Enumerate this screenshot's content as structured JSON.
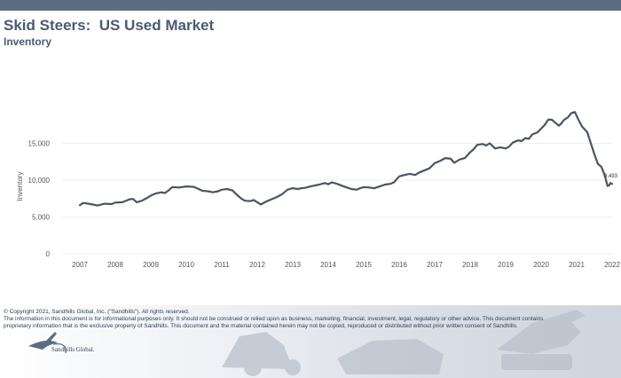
{
  "header": {
    "title": "Skid Steers:  US Used Market",
    "subtitle": "Inventory"
  },
  "footer": {
    "copyright": "© Copyright 2021, Sandhills Global, Inc. (\"Sandhills\"). All rights reserved.",
    "disclaimer": "The information in this document is for informational purposes only.  It should not be construed or relied upon as business, marketing, financial, investment, legal, regulatory or other advice. This document contains proprietary information that is the exclusive property of Sandhills. This document and the material contained herein may not be copied, reproduced or distributed without prior written consent of Sandhills.",
    "logo_text": "Sandhills Global."
  },
  "colors": {
    "header_band": "#5c6d80",
    "title": "#4a5b70",
    "line": "#4b5563",
    "grid": "#e6e9ee",
    "axis_text": "#555555"
  },
  "chart_data": {
    "type": "line",
    "title": "",
    "xlabel": "",
    "ylabel": "Inventory",
    "xlim": [
      2006.5,
      2022
    ],
    "ylim": [
      0,
      20000
    ],
    "y_ticks": [
      0,
      5000,
      10000,
      15000
    ],
    "y_tick_labels": [
      "0",
      "5,000",
      "10,000",
      "15,000"
    ],
    "x_ticks": [
      2007,
      2008,
      2009,
      2010,
      2011,
      2012,
      2013,
      2014,
      2015,
      2016,
      2017,
      2018,
      2019,
      2020,
      2021,
      2022
    ],
    "x_tick_labels": [
      "2007",
      "2008",
      "2009",
      "2010",
      "2011",
      "2012",
      "2013",
      "2014",
      "2015",
      "2016",
      "2017",
      "2018",
      "2019",
      "2020",
      "2021",
      "2022"
    ],
    "grid": "horizontal",
    "end_label": "9,493",
    "series": [
      {
        "points": [
          [
            2007.0,
            6600
          ],
          [
            2007.1,
            6900
          ],
          [
            2007.3,
            6750
          ],
          [
            2007.5,
            6550
          ],
          [
            2007.7,
            6800
          ],
          [
            2007.9,
            6750
          ],
          [
            2008.0,
            6950
          ],
          [
            2008.2,
            7000
          ],
          [
            2008.4,
            7400
          ],
          [
            2008.5,
            7450
          ],
          [
            2008.6,
            7000
          ],
          [
            2008.75,
            7200
          ],
          [
            2008.9,
            7600
          ],
          [
            2009.0,
            7900
          ],
          [
            2009.15,
            8200
          ],
          [
            2009.3,
            8350
          ],
          [
            2009.4,
            8250
          ],
          [
            2009.5,
            8600
          ],
          [
            2009.6,
            9050
          ],
          [
            2009.8,
            9000
          ],
          [
            2010.0,
            9150
          ],
          [
            2010.2,
            9100
          ],
          [
            2010.35,
            8800
          ],
          [
            2010.45,
            8550
          ],
          [
            2010.6,
            8500
          ],
          [
            2010.75,
            8350
          ],
          [
            2010.9,
            8500
          ],
          [
            2011.0,
            8700
          ],
          [
            2011.15,
            8800
          ],
          [
            2011.3,
            8600
          ],
          [
            2011.45,
            7900
          ],
          [
            2011.55,
            7500
          ],
          [
            2011.65,
            7200
          ],
          [
            2011.8,
            7150
          ],
          [
            2011.9,
            7300
          ],
          [
            2012.0,
            7000
          ],
          [
            2012.1,
            6700
          ],
          [
            2012.25,
            7100
          ],
          [
            2012.4,
            7400
          ],
          [
            2012.55,
            7700
          ],
          [
            2012.7,
            8100
          ],
          [
            2012.85,
            8700
          ],
          [
            2013.0,
            8900
          ],
          [
            2013.15,
            8800
          ],
          [
            2013.25,
            8900
          ],
          [
            2013.35,
            8950
          ],
          [
            2013.5,
            9150
          ],
          [
            2013.65,
            9300
          ],
          [
            2013.75,
            9400
          ],
          [
            2013.9,
            9600
          ],
          [
            2014.0,
            9450
          ],
          [
            2014.1,
            9700
          ],
          [
            2014.25,
            9500
          ],
          [
            2014.35,
            9300
          ],
          [
            2014.5,
            9050
          ],
          [
            2014.65,
            8800
          ],
          [
            2014.8,
            8700
          ],
          [
            2014.9,
            8900
          ],
          [
            2015.0,
            9050
          ],
          [
            2015.15,
            9000
          ],
          [
            2015.3,
            8900
          ],
          [
            2015.45,
            9150
          ],
          [
            2015.6,
            9400
          ],
          [
            2015.75,
            9500
          ],
          [
            2015.85,
            9700
          ],
          [
            2016.0,
            10500
          ],
          [
            2016.15,
            10700
          ],
          [
            2016.3,
            10850
          ],
          [
            2016.45,
            10700
          ],
          [
            2016.55,
            11000
          ],
          [
            2016.7,
            11300
          ],
          [
            2016.85,
            11600
          ],
          [
            2017.0,
            12300
          ],
          [
            2017.15,
            12600
          ],
          [
            2017.3,
            13000
          ],
          [
            2017.45,
            12900
          ],
          [
            2017.55,
            12350
          ],
          [
            2017.7,
            12800
          ],
          [
            2017.85,
            13000
          ],
          [
            2018.0,
            13800
          ],
          [
            2018.1,
            14200
          ],
          [
            2018.2,
            14800
          ],
          [
            2018.35,
            14900
          ],
          [
            2018.45,
            14700
          ],
          [
            2018.55,
            15000
          ],
          [
            2018.7,
            14300
          ],
          [
            2018.85,
            14450
          ],
          [
            2019.0,
            14300
          ],
          [
            2019.1,
            14550
          ],
          [
            2019.2,
            15100
          ],
          [
            2019.35,
            15400
          ],
          [
            2019.45,
            15300
          ],
          [
            2019.55,
            15700
          ],
          [
            2019.65,
            15600
          ],
          [
            2019.75,
            16200
          ],
          [
            2019.9,
            16500
          ],
          [
            2020.0,
            17000
          ],
          [
            2020.1,
            17500
          ],
          [
            2020.2,
            18200
          ],
          [
            2020.3,
            18200
          ],
          [
            2020.4,
            17800
          ],
          [
            2020.5,
            17400
          ],
          [
            2020.55,
            17600
          ],
          [
            2020.65,
            18200
          ],
          [
            2020.75,
            18500
          ],
          [
            2020.85,
            19100
          ],
          [
            2020.95,
            19250
          ],
          [
            2021.05,
            18200
          ],
          [
            2021.15,
            17300
          ],
          [
            2021.3,
            16500
          ],
          [
            2021.4,
            15000
          ],
          [
            2021.5,
            13500
          ],
          [
            2021.6,
            12200
          ],
          [
            2021.7,
            11800
          ],
          [
            2021.8,
            10500
          ],
          [
            2021.87,
            9200
          ],
          [
            2021.92,
            9300
          ],
          [
            2021.95,
            9600
          ],
          [
            2022.0,
            9493
          ]
        ]
      }
    ]
  }
}
